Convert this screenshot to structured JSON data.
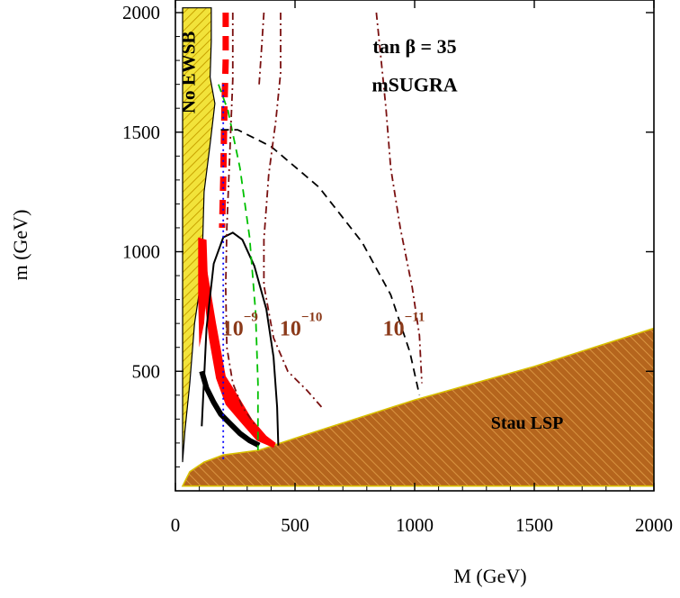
{
  "chart_data": {
    "type": "contour",
    "xlabel": "M (GeV)",
    "ylabel": "m (GeV)",
    "xlim": [
      0,
      2000
    ],
    "ylim": [
      0,
      2000
    ],
    "x_ticks": [
      0,
      500,
      1000,
      1500,
      2000
    ],
    "y_ticks": [
      500,
      1000,
      1500,
      2000
    ],
    "annotations": [
      {
        "id": "tanb",
        "text": "tan β = 35",
        "x": 1000,
        "y": 1830
      },
      {
        "id": "model",
        "text": "mSUGRA",
        "x": 1000,
        "y": 1670
      },
      {
        "id": "noewsb",
        "text": "No EWSB",
        "x": 80,
        "y": 1750,
        "rotation": -90
      },
      {
        "id": "staulsp",
        "text": "Stau LSP",
        "x": 1470,
        "y": 260
      }
    ],
    "contour_labels": [
      {
        "id": "c9",
        "mantissa": "10",
        "exponent": "−9",
        "x": 270,
        "y": 650
      },
      {
        "id": "c10",
        "mantissa": "10",
        "exponent": "−10",
        "x": 525,
        "y": 650
      },
      {
        "id": "c11",
        "mantissa": "10",
        "exponent": "−11",
        "x": 955,
        "y": 650
      }
    ],
    "regions": {
      "no_ewsb": {
        "color": "#f2e33a",
        "hatch": "#c8a200"
      },
      "stau_lsp": {
        "color": "#b5651d",
        "hatch": "#e2a04a"
      },
      "favored": {
        "color": "#ff0000"
      }
    },
    "curves": [
      {
        "id": "solid-black",
        "style": "solid",
        "color": "#000000",
        "points": [
          [
            110,
            270
          ],
          [
            130,
            680
          ],
          [
            160,
            950
          ],
          [
            200,
            1060
          ],
          [
            240,
            1080
          ],
          [
            280,
            1050
          ],
          [
            330,
            940
          ],
          [
            380,
            760
          ],
          [
            410,
            560
          ],
          [
            425,
            350
          ],
          [
            430,
            190
          ]
        ]
      },
      {
        "id": "dashed-black",
        "style": "dashed",
        "color": "#000000",
        "points": [
          [
            190,
            1510
          ],
          [
            260,
            1510
          ],
          [
            400,
            1440
          ],
          [
            600,
            1270
          ],
          [
            780,
            1040
          ],
          [
            900,
            820
          ],
          [
            980,
            580
          ],
          [
            1020,
            400
          ]
        ]
      },
      {
        "id": "dashed-green",
        "style": "dashed",
        "color": "#00c000",
        "points": [
          [
            180,
            1700
          ],
          [
            220,
            1590
          ],
          [
            270,
            1350
          ],
          [
            310,
            1060
          ],
          [
            335,
            750
          ],
          [
            345,
            450
          ],
          [
            345,
            170
          ]
        ]
      },
      {
        "id": "dotted-blue",
        "style": "dotted",
        "color": "#0000ff",
        "points": [
          [
            200,
            1700
          ],
          [
            200,
            1300
          ],
          [
            200,
            900
          ],
          [
            200,
            500
          ],
          [
            200,
            120
          ]
        ]
      },
      {
        "id": "dashdot-m9",
        "style": "dashdot",
        "color": "#7a1010",
        "points": [
          [
            240,
            2000
          ],
          [
            240,
            1720
          ],
          [
            230,
            1480
          ],
          [
            215,
            1100
          ],
          [
            210,
            850
          ],
          [
            215,
            600
          ],
          [
            240,
            450
          ],
          [
            280,
            350
          ],
          [
            330,
            280
          ]
        ]
      },
      {
        "id": "dashdot-m10",
        "style": "dashdot",
        "color": "#7a1010",
        "points": [
          [
            440,
            2000
          ],
          [
            440,
            1750
          ],
          [
            420,
            1550
          ],
          [
            390,
            1320
          ],
          [
            370,
            1050
          ],
          [
            370,
            860
          ],
          [
            410,
            640
          ],
          [
            470,
            500
          ],
          [
            550,
            420
          ],
          [
            620,
            340
          ]
        ]
      },
      {
        "id": "dashdot-m11",
        "style": "dashdot",
        "color": "#7a1010",
        "points": [
          [
            840,
            2000
          ],
          [
            860,
            1800
          ],
          [
            880,
            1600
          ],
          [
            900,
            1350
          ],
          [
            940,
            1100
          ],
          [
            990,
            850
          ],
          [
            1020,
            650
          ],
          [
            1030,
            450
          ]
        ]
      },
      {
        "id": "dashdot-top",
        "style": "dashdot",
        "color": "#7a1010",
        "points": [
          [
            370,
            2000
          ],
          [
            360,
            1850
          ],
          [
            350,
            1700
          ]
        ]
      }
    ]
  }
}
